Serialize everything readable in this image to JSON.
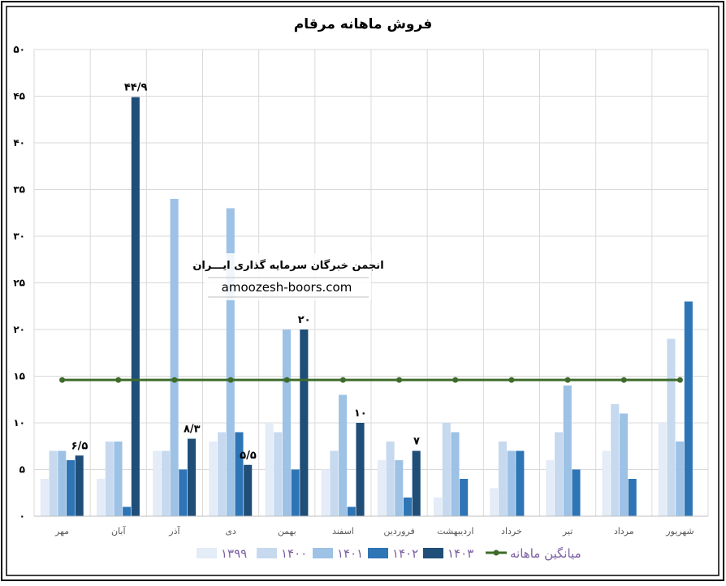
{
  "chart_data": {
    "type": "bar",
    "title": "فروش ماهانه مرقام",
    "xlabel": "",
    "ylabel": "",
    "ylim": [
      0,
      50
    ],
    "yticks": [
      "۰",
      "۵",
      "۱۰",
      "۱۵",
      "۲۰",
      "۲۵",
      "۳۰",
      "۳۵",
      "۴۰",
      "۴۵",
      "۵۰"
    ],
    "grid": true,
    "legend_position": "bottom",
    "categories": [
      "مهر",
      "آبان",
      "آذر",
      "دی",
      "بهمن",
      "اسفند",
      "فروردین",
      "اردیبهشت",
      "خرداد",
      "تیر",
      "مرداد",
      "شهریور"
    ],
    "series": [
      {
        "name": "۱۳۹۹",
        "color": "#e3ecf7",
        "values": [
          4,
          4,
          7,
          8,
          10,
          5,
          6,
          2,
          3,
          6,
          7,
          10
        ]
      },
      {
        "name": "۱۴۰۰",
        "color": "#c6d9ef",
        "values": [
          7,
          8,
          7,
          9,
          9,
          7,
          8,
          10,
          8,
          9,
          12,
          19
        ]
      },
      {
        "name": "۱۴۰۱",
        "color": "#9dc2e6",
        "values": [
          7,
          8,
          34,
          33,
          20,
          13,
          6,
          9,
          7,
          14,
          11,
          8
        ]
      },
      {
        "name": "۱۴۰۲",
        "color": "#2e75b6",
        "values": [
          6,
          1,
          5,
          9,
          5,
          1,
          2,
          4,
          7,
          5,
          4,
          23
        ]
      },
      {
        "name": "۱۴۰۳",
        "color": "#1f4e79",
        "values": [
          6.5,
          44.9,
          8.3,
          5.5,
          20,
          10,
          7,
          null,
          null,
          null,
          null,
          null
        ]
      }
    ],
    "data_labels": [
      "۶/۵",
      "۴۴/۹",
      "۸/۳",
      "۵/۵",
      "۲۰",
      "۱۰",
      "۷"
    ],
    "average_line": {
      "name": "میانگین ماهانه",
      "color": "#3e6b2a",
      "value": 14.6
    }
  },
  "watermark": {
    "line1": "انجمن خبرگان سرمایه گذاری ایـــران",
    "line2": "amoozesh-boors.com"
  }
}
